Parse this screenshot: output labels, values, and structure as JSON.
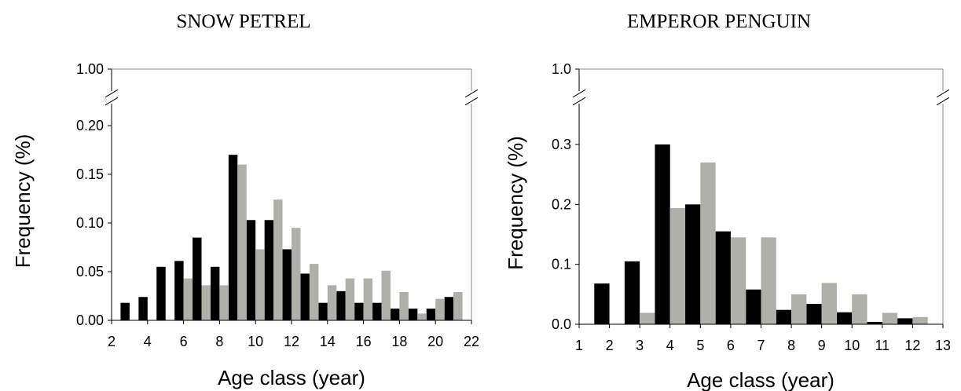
{
  "chart_data": [
    {
      "type": "bar",
      "title": "SNOW PETREL",
      "xlabel": "Age class (year)",
      "ylabel": "Frequency (%)",
      "xlim": [
        2,
        22
      ],
      "xticks": [
        "2",
        "4",
        "6",
        "8",
        "10",
        "12",
        "14",
        "16",
        "18",
        "20",
        "22"
      ],
      "ylim": [
        0,
        0.2
      ],
      "yticks": [
        "0.00",
        "0.05",
        "0.10",
        "0.15",
        "0.20"
      ],
      "y_break_top_label": "1.00",
      "colors": [
        "#000000",
        "#b0b0aa"
      ],
      "categories": [
        3,
        4,
        5,
        6,
        7,
        8,
        9,
        10,
        11,
        12,
        13,
        14,
        15,
        16,
        17,
        18,
        19,
        20,
        21
      ],
      "series": [
        {
          "values": [
            0.018,
            0.024,
            0.055,
            0.061,
            0.085,
            0.055,
            0.17,
            0.103,
            0.103,
            0.073,
            0.048,
            0.018,
            0.03,
            0.018,
            0.018,
            0.012,
            0.012,
            0.012,
            0.024
          ]
        },
        {
          "values": [
            0,
            0,
            0,
            0.043,
            0.036,
            0.036,
            0.16,
            0.073,
            0.124,
            0.095,
            0.058,
            0.036,
            0.043,
            0.043,
            0.051,
            0.029,
            0.007,
            0.022,
            0.029
          ]
        }
      ]
    },
    {
      "type": "bar",
      "title": "EMPEROR PENGUIN",
      "xlabel": "Age class (year)",
      "ylabel": "Frequency (%)",
      "xlim": [
        1,
        13
      ],
      "xticks": [
        "1",
        "2",
        "3",
        "4",
        "5",
        "6",
        "7",
        "8",
        "9",
        "10",
        "11",
        "12",
        "13"
      ],
      "ylim": [
        0,
        0.3
      ],
      "yticks": [
        "0.0",
        "0.1",
        "0.2",
        "0.3"
      ],
      "y_break_top_label": "1.0",
      "colors": [
        "#000000",
        "#b0b0aa"
      ],
      "categories": [
        2,
        3,
        4,
        5,
        6,
        7,
        8,
        9,
        10,
        11,
        12
      ],
      "series": [
        {
          "values": [
            0.068,
            0.105,
            0.3,
            0.2,
            0.155,
            0.058,
            0.024,
            0.034,
            0.02,
            0.004,
            0.01
          ]
        },
        {
          "values": [
            0,
            0.019,
            0.194,
            0.27,
            0.145,
            0.145,
            0.05,
            0.069,
            0.05,
            0.019,
            0.012
          ]
        }
      ]
    }
  ]
}
